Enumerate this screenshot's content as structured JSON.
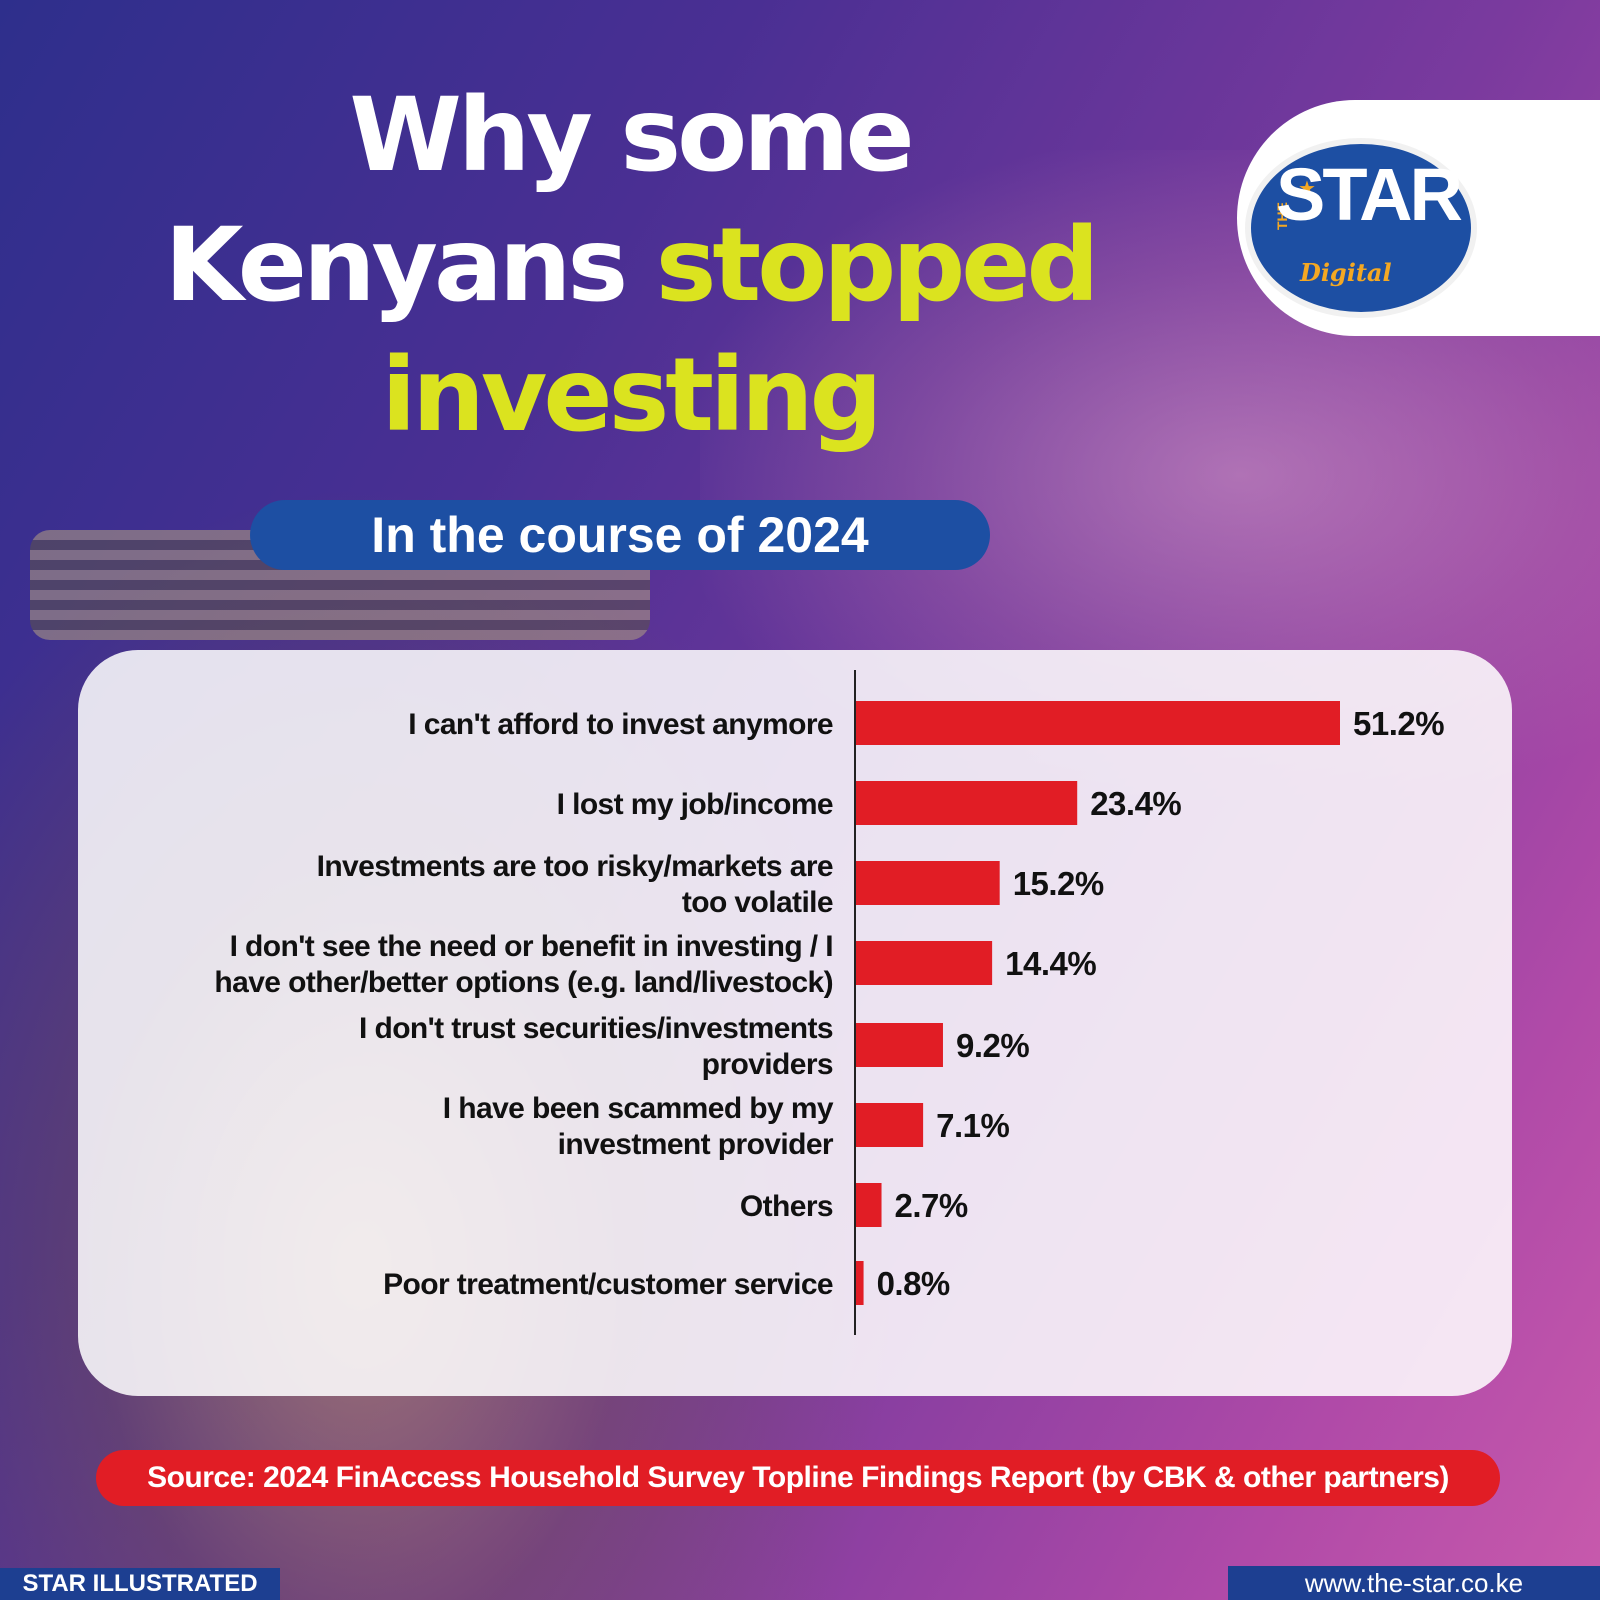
{
  "header": {
    "title_line1": "Why some",
    "title_line2_white": "Kenyans",
    "title_line2_highlight": "stopped",
    "title_line3": "investing",
    "subtitle": "In the course of 2024"
  },
  "logo": {
    "small_text": "THE",
    "main_text": "STAR",
    "tag_text": "Digital"
  },
  "colors": {
    "bar": "#e11d25",
    "highlight": "#dbe31f",
    "brand_blue": "#1d4fa3",
    "source_pill": "#e11d25"
  },
  "chart_data": {
    "type": "bar",
    "orientation": "horizontal",
    "unit": "%",
    "categories": [
      [
        "I can't afford to invest anymore"
      ],
      [
        "I lost my job/income"
      ],
      [
        "Investments are too risky/markets are",
        "too volatile"
      ],
      [
        "I don't see the need or benefit in investing / I",
        "have other/better options (e.g. land/livestock)"
      ],
      [
        "I don't trust securities/investments",
        "providers"
      ],
      [
        "I have been scammed by my",
        "investment provider"
      ],
      [
        "Others"
      ],
      [
        "Poor treatment/customer service"
      ]
    ],
    "values": [
      51.2,
      23.4,
      15.2,
      14.4,
      9.2,
      7.1,
      2.7,
      0.8
    ],
    "value_labels": [
      "51.2%",
      "23.4%",
      "15.2%",
      "14.4%",
      "9.2%",
      "7.1%",
      "2.7%",
      "0.8%"
    ],
    "xlim": [
      0,
      51.2
    ],
    "grid": false,
    "legend": "none"
  },
  "source": "Source: 2024 FinAccess Household Survey Topline  Findings Report (by CBK & other partners)",
  "footer": {
    "left": "STAR ILLUSTRATED",
    "right": "www.the-star.co.ke"
  }
}
